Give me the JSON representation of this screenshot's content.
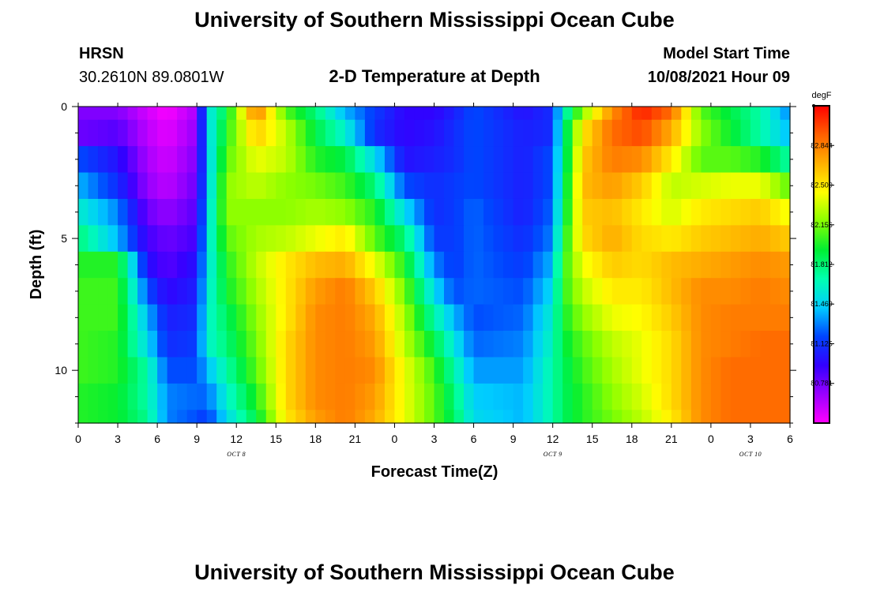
{
  "header": {
    "title_top": "University of Southern Mississippi Ocean Cube",
    "title_bottom": "University of Southern Mississippi Ocean Cube",
    "station": "HRSN",
    "coords": "30.2610N  89.0801W",
    "plot_title": "2-D Temperature at Depth",
    "model_label": "Model Start Time",
    "model_time": "10/08/2021 Hour 09"
  },
  "chart_data": {
    "type": "heatmap",
    "title": "2-D Temperature at Depth",
    "xlabel": "Forecast Time(Z)",
    "ylabel": "Depth (ft)",
    "x_hours_from_start": [
      0,
      72
    ],
    "y_range": [
      0,
      12
    ],
    "x_ticks": [
      "0",
      "3",
      "6",
      "9",
      "12",
      "15",
      "18",
      "21",
      "0",
      "3",
      "6",
      "9",
      "12",
      "15",
      "18",
      "21",
      "0",
      "3",
      "6"
    ],
    "y_ticks": [
      "0",
      "5",
      "10"
    ],
    "date_labels": [
      {
        "text": "OCT 8",
        "hour": 16
      },
      {
        "text": "OCT 9",
        "hour": 48
      },
      {
        "text": "OCT 10",
        "hour": 68
      }
    ],
    "colorbar": {
      "unit": "degF",
      "min": 80.437,
      "max": 83.188,
      "tick_values": [
        "82.844",
        "82.500",
        "82.156",
        "81.812",
        "81.469",
        "81.125",
        "80.781"
      ]
    },
    "colormap_stops": [
      "#ff00ff",
      "#9a00ff",
      "#3300ff",
      "#0044ff",
      "#00ccff",
      "#00ffb0",
      "#00ee33",
      "#88ff00",
      "#ffff00",
      "#ffb000",
      "#ff6000",
      "#ff0000"
    ],
    "depth_ft": [
      0,
      1,
      2,
      3,
      4,
      5,
      6,
      7,
      8,
      9,
      10,
      11,
      12
    ],
    "keyframe_hours": [
      0,
      4,
      7,
      9,
      12,
      13,
      15,
      18,
      21,
      24,
      27,
      30,
      33,
      36,
      38,
      40,
      45,
      48,
      49,
      51,
      54,
      57,
      60,
      63,
      66,
      69,
      72
    ],
    "temperature_degF": [
      [
        80.75,
        80.75,
        80.55,
        80.45,
        80.65,
        81.5,
        81.9,
        82.85,
        82.1,
        81.8,
        81.4,
        81.15,
        80.95,
        80.95,
        81.05,
        81.2,
        81.0,
        81.1,
        81.6,
        82.2,
        82.8,
        83.1,
        82.9,
        82.1,
        81.9,
        81.7,
        81.3
      ],
      [
        80.8,
        80.85,
        80.6,
        80.5,
        80.7,
        81.45,
        82.0,
        82.6,
        82.3,
        81.9,
        81.6,
        81.1,
        80.95,
        81.0,
        81.1,
        81.2,
        81.05,
        81.1,
        81.7,
        82.5,
        82.9,
        83.0,
        82.7,
        82.2,
        81.95,
        81.7,
        81.4
      ],
      [
        81.2,
        81.0,
        80.65,
        80.55,
        80.75,
        81.4,
        82.1,
        82.4,
        82.3,
        82.0,
        81.9,
        81.5,
        81.0,
        81.05,
        81.1,
        81.2,
        81.05,
        81.2,
        81.7,
        82.6,
        82.85,
        82.8,
        82.5,
        82.1,
        82.1,
        82.0,
        81.7
      ],
      [
        81.4,
        81.1,
        80.7,
        80.6,
        80.8,
        81.4,
        82.2,
        82.3,
        82.2,
        82.15,
        82.05,
        81.8,
        81.2,
        81.1,
        81.15,
        81.2,
        81.05,
        81.2,
        81.75,
        82.65,
        82.75,
        82.6,
        82.3,
        82.35,
        82.4,
        82.4,
        82.1
      ],
      [
        81.6,
        81.3,
        80.8,
        80.7,
        80.85,
        81.45,
        82.2,
        82.2,
        82.2,
        82.25,
        82.2,
        82.0,
        81.5,
        81.1,
        81.15,
        81.25,
        81.05,
        81.25,
        81.8,
        82.6,
        82.65,
        82.5,
        82.35,
        82.5,
        82.55,
        82.6,
        82.4
      ],
      [
        81.8,
        81.4,
        80.9,
        80.8,
        80.9,
        81.5,
        82.1,
        82.25,
        82.3,
        82.4,
        82.5,
        82.1,
        81.8,
        81.15,
        81.15,
        81.25,
        81.1,
        81.3,
        81.9,
        82.55,
        82.7,
        82.55,
        82.5,
        82.6,
        82.65,
        82.7,
        82.6
      ],
      [
        82.0,
        82.0,
        81.0,
        80.85,
        81.0,
        81.5,
        82.0,
        82.3,
        82.5,
        82.65,
        82.7,
        82.4,
        82.0,
        81.3,
        81.15,
        81.25,
        81.15,
        81.4,
        82.0,
        82.4,
        82.6,
        82.55,
        82.65,
        82.7,
        82.75,
        82.8,
        82.75
      ],
      [
        82.05,
        82.05,
        81.2,
        80.95,
        81.05,
        81.55,
        81.95,
        82.25,
        82.5,
        82.75,
        82.85,
        82.6,
        82.15,
        81.5,
        81.2,
        81.25,
        81.2,
        81.5,
        82.0,
        82.3,
        82.5,
        82.5,
        82.65,
        82.8,
        82.8,
        82.85,
        82.8
      ],
      [
        82.05,
        82.05,
        81.4,
        81.05,
        81.1,
        81.6,
        81.85,
        82.2,
        82.5,
        82.8,
        82.85,
        82.7,
        82.25,
        81.7,
        81.4,
        81.2,
        81.25,
        81.6,
        81.95,
        82.2,
        82.4,
        82.45,
        82.6,
        82.8,
        82.85,
        82.85,
        82.85
      ],
      [
        82.05,
        82.0,
        81.5,
        81.1,
        81.15,
        81.6,
        81.8,
        82.15,
        82.55,
        82.8,
        82.85,
        82.75,
        82.3,
        81.9,
        81.55,
        81.25,
        81.3,
        81.65,
        81.9,
        82.1,
        82.3,
        82.4,
        82.55,
        82.8,
        82.85,
        82.9,
        82.9
      ],
      [
        82.05,
        82.0,
        81.7,
        81.2,
        81.2,
        81.4,
        81.7,
        82.1,
        82.55,
        82.8,
        82.85,
        82.8,
        82.4,
        82.05,
        81.7,
        81.35,
        81.35,
        81.7,
        81.85,
        82.05,
        82.25,
        82.4,
        82.55,
        82.8,
        82.9,
        82.9,
        82.9
      ],
      [
        82.0,
        81.95,
        81.7,
        81.3,
        81.25,
        81.25,
        81.6,
        82.0,
        82.55,
        82.8,
        82.85,
        82.75,
        82.4,
        82.1,
        81.8,
        81.45,
        81.4,
        81.7,
        81.85,
        82.0,
        82.2,
        82.35,
        82.55,
        82.8,
        82.9,
        82.9,
        82.9
      ],
      [
        82.0,
        81.95,
        81.75,
        81.3,
        81.2,
        81.15,
        81.5,
        81.9,
        82.5,
        82.75,
        82.85,
        82.7,
        82.4,
        82.1,
        81.85,
        81.5,
        81.4,
        81.7,
        81.85,
        82.0,
        82.15,
        82.3,
        82.5,
        82.8,
        82.9,
        82.9,
        82.9
      ]
    ]
  }
}
